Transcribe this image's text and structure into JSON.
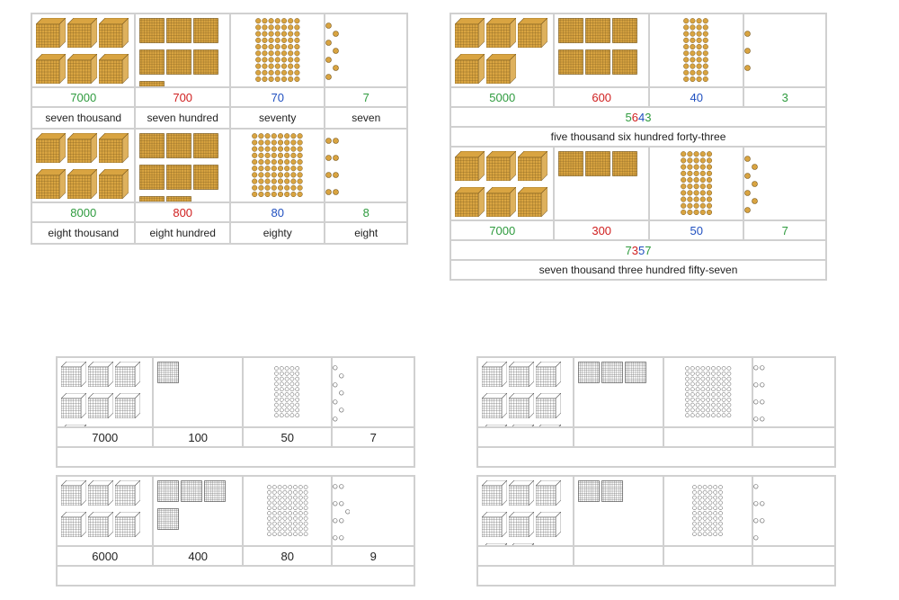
{
  "colors": {
    "thousands": "#2e9b3e",
    "hundreds": "#d02020",
    "tens": "#2050c0",
    "ones": "#2e9b3e",
    "word": "#222222",
    "border": "#d0d0d0",
    "gold_fill": "#d9a441",
    "gold_stroke": "#7a5a1e",
    "bw_fill": "#ffffff",
    "bw_stroke": "#555555"
  },
  "top_left": {
    "style": "named",
    "rows": [
      {
        "th": {
          "n": 7,
          "v": "7000",
          "w": "seven thousand"
        },
        "hu": {
          "n": 7,
          "v": "700",
          "w": "seven hundred"
        },
        "te": {
          "n": 7,
          "v": "70",
          "w": "seventy"
        },
        "on": {
          "n": 7,
          "v": "7",
          "w": "seven"
        }
      },
      {
        "th": {
          "n": 8,
          "v": "8000",
          "w": "eight thousand"
        },
        "hu": {
          "n": 8,
          "v": "800",
          "w": "eight hundred"
        },
        "te": {
          "n": 8,
          "v": "80",
          "w": "eighty"
        },
        "on": {
          "n": 8,
          "v": "8",
          "w": "eight"
        }
      }
    ]
  },
  "top_right": {
    "style": "combined",
    "rows": [
      {
        "th": {
          "n": 5,
          "v": "5000"
        },
        "hu": {
          "n": 6,
          "v": "600"
        },
        "te": {
          "n": 4,
          "v": "40"
        },
        "on": {
          "n": 3,
          "v": "3"
        },
        "combo": [
          {
            "t": "5",
            "c": "thousands"
          },
          {
            "t": "6",
            "c": "hundreds"
          },
          {
            "t": "4",
            "c": "tens"
          },
          {
            "t": "3",
            "c": "ones"
          }
        ],
        "phrase": "five thousand six hundred forty-three"
      },
      {
        "th": {
          "n": 7,
          "v": "7000"
        },
        "hu": {
          "n": 3,
          "v": "300"
        },
        "te": {
          "n": 5,
          "v": "50"
        },
        "on": {
          "n": 7,
          "v": "7"
        },
        "combo": [
          {
            "t": "7",
            "c": "thousands"
          },
          {
            "t": "3",
            "c": "hundreds"
          },
          {
            "t": "5",
            "c": "tens"
          },
          {
            "t": "7",
            "c": "ones"
          }
        ],
        "phrase": "seven thousand three hundred fifty-seven"
      }
    ]
  },
  "bw": {
    "left": [
      {
        "th": {
          "n": 7,
          "v": "7000"
        },
        "hu": {
          "n": 1,
          "v": "100"
        },
        "te": {
          "n": 5,
          "v": "50"
        },
        "on": {
          "n": 7,
          "v": "7"
        }
      },
      {
        "th": {
          "n": 6,
          "v": "6000"
        },
        "hu": {
          "n": 4,
          "v": "400"
        },
        "te": {
          "n": 8,
          "v": "80"
        },
        "on": {
          "n": 9,
          "v": "9"
        }
      }
    ],
    "right": [
      {
        "th": {
          "n": 9
        },
        "hu": {
          "n": 3
        },
        "te": {
          "n": 9
        },
        "on": {
          "n": 8
        }
      },
      {
        "th": {
          "n": 8
        },
        "hu": {
          "n": 2
        },
        "te": {
          "n": 6
        },
        "on": {
          "n": 6
        }
      }
    ]
  },
  "layout": {
    "top_card_w": 420,
    "top_img_h": 82,
    "top_num_h": 22,
    "top_word_h": 24,
    "top_cols": [
      116,
      106,
      106,
      92
    ],
    "bw_card_w": 400,
    "bw_img_h": 78,
    "bw_num_h": 22,
    "bw_blank_h": 22,
    "bw_cols": [
      108,
      100,
      100,
      92
    ]
  }
}
